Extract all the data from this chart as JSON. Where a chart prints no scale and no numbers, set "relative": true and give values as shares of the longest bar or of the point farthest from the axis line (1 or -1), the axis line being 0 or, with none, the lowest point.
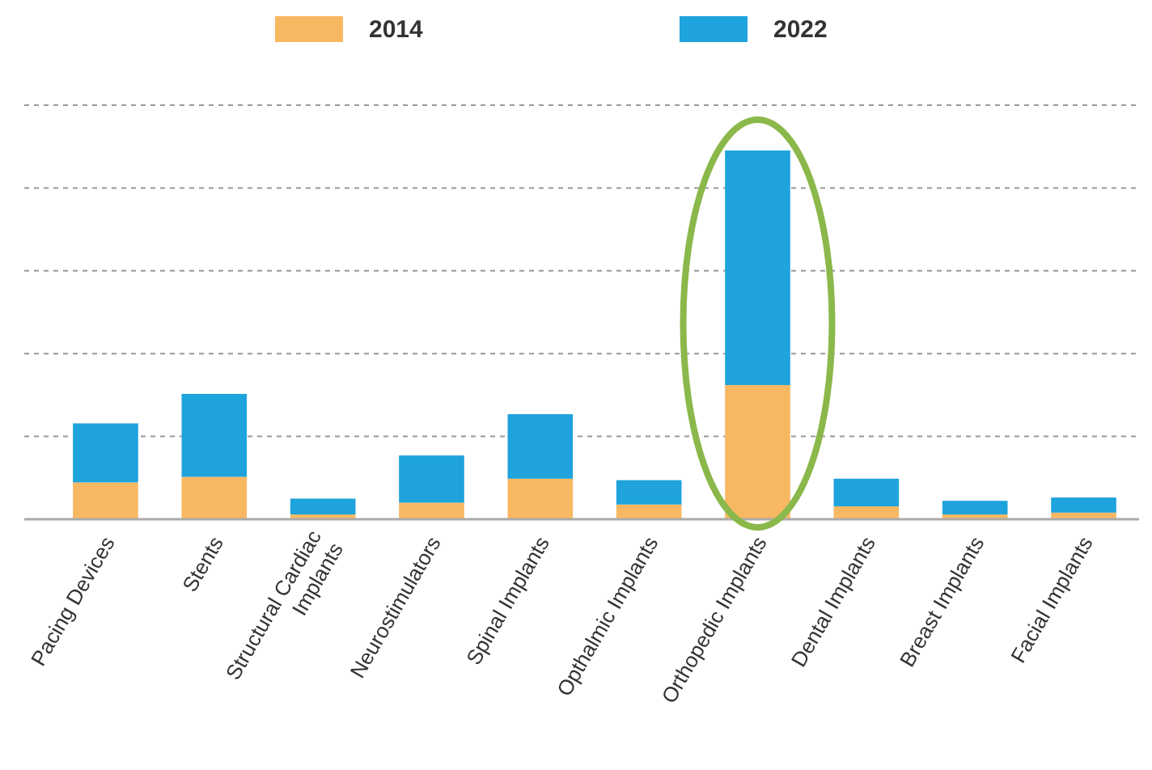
{
  "chart_data": {
    "type": "bar",
    "stacked": true,
    "relative": true,
    "grid": "y",
    "legend": "top",
    "categories": [
      "Pacing Devices",
      "Stents",
      "Structural Cardiac Implants",
      "Neurostimulators",
      "Spinal Implants",
      "Opthalmic Implants",
      "Orthopedic Implants",
      "Dental Implants",
      "Breast Implants",
      "Facial Implants"
    ],
    "series": [
      {
        "name": "2014",
        "color": "#f8b862",
        "values": [
          0.1,
          0.115,
          0.013,
          0.045,
          0.11,
          0.04,
          0.364,
          0.035,
          0.013,
          0.018
        ]
      },
      {
        "name": "2022",
        "color": "#1ea3dc",
        "values": [
          0.16,
          0.225,
          0.043,
          0.128,
          0.175,
          0.066,
          0.636,
          0.075,
          0.037,
          0.041
        ]
      }
    ]
  }
}
